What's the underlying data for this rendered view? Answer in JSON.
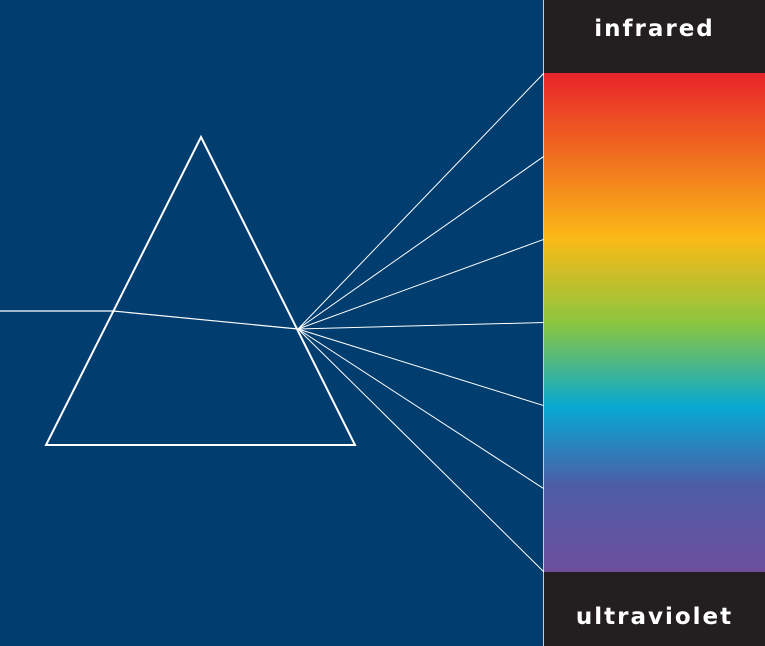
{
  "spectrum": {
    "top_label": "infrared",
    "bottom_label": "ultraviolet",
    "colors": [
      "#e8242b",
      "#f0701f",
      "#fbb916",
      "#8dc63f",
      "#07a8d2",
      "#4e5ca6",
      "#6c4e9c"
    ]
  },
  "colors": {
    "background": "#013d6f",
    "panel": "#231f20",
    "line": "#ffffff"
  },
  "rays": {
    "count": 7
  }
}
